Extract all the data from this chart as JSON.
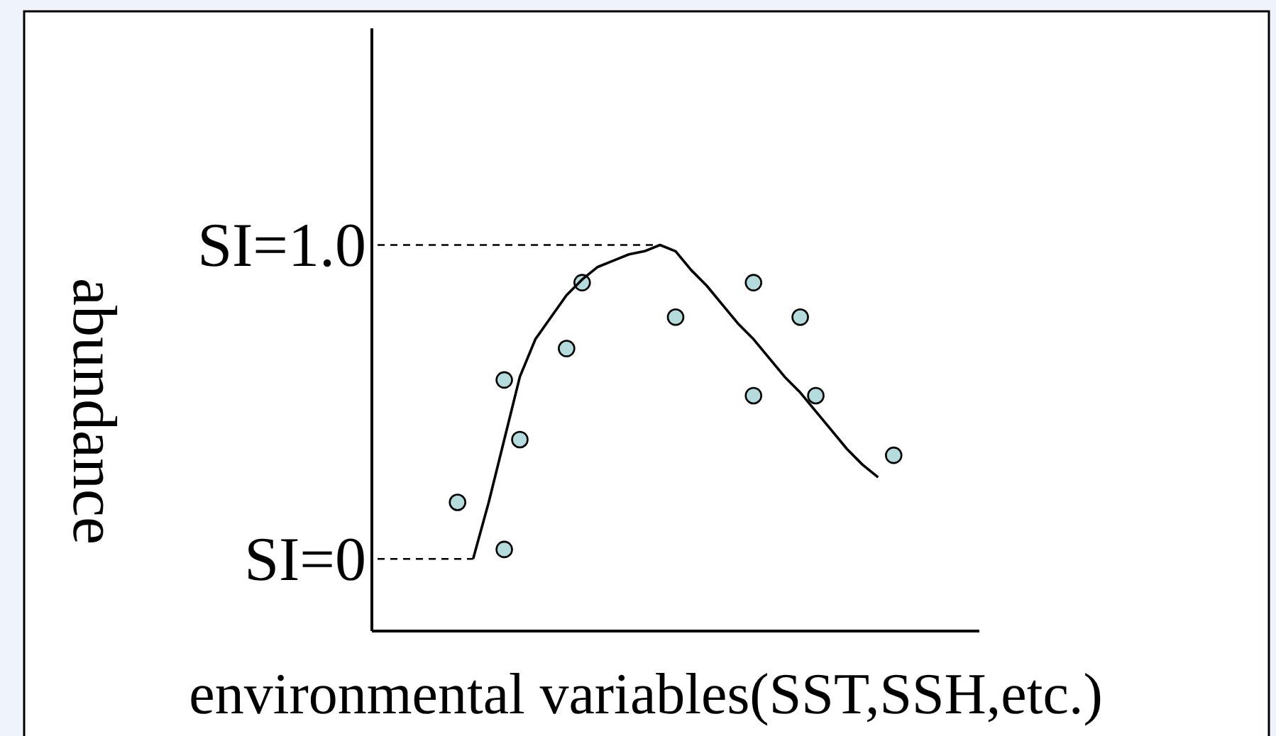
{
  "chart_data": {
    "type": "scatter",
    "xlabel": "environmental variables(SST,SSH,etc.)",
    "ylabel": "abundance",
    "categories": [
      null,
      null,
      null,
      null,
      null,
      null,
      null,
      null,
      null,
      null,
      null,
      null,
      null,
      null,
      null,
      null,
      null,
      null,
      null,
      null,
      null,
      null,
      null,
      null,
      null,
      null,
      null,
      null,
      null,
      null,
      null,
      null,
      null,
      null,
      null,
      null,
      null,
      null,
      null
    ],
    "ylim": [
      -0.23,
      1.69
    ],
    "yticks": [
      {
        "value": 0,
        "label": "SI=0"
      },
      {
        "value": 1,
        "label": "SI=1.0"
      }
    ],
    "tick_labels": "y",
    "marker": "circle",
    "ref_lines": [
      {
        "axis": "y",
        "value": 0,
        "label": null,
        "line_style": "dashed",
        "color": "#000000"
      },
      {
        "axis": "y",
        "value": 1,
        "label": null,
        "line_style": "dashed",
        "color": "#000000"
      }
    ],
    "series": [
      {
        "color": "#b4dcdc",
        "values": [
          null,
          null,
          null,
          null,
          null,
          0.18,
          null,
          null,
          0.57,
          0.38,
          null,
          null,
          0.67,
          0.88,
          null,
          null,
          null,
          null,
          null,
          0.77,
          null,
          null,
          null,
          null,
          0.88,
          null,
          null,
          0.77,
          0.52,
          null,
          null,
          null,
          null,
          0.33,
          null,
          null,
          null,
          null,
          null
        ]
      },
      {
        "color": "#b4dcdc",
        "values": [
          null,
          null,
          null,
          null,
          null,
          null,
          null,
          null,
          0.03,
          null,
          null,
          null,
          null,
          null,
          null,
          null,
          null,
          null,
          null,
          null,
          null,
          null,
          null,
          null,
          0.52,
          null,
          null,
          null,
          null,
          null,
          null,
          null,
          null,
          null,
          null,
          null,
          null,
          null,
          null
        ]
      },
      {
        "type": "line",
        "color": "#000000",
        "marker": "none",
        "values": [
          null,
          null,
          null,
          null,
          null,
          null,
          0,
          0.18,
          0.38,
          0.58,
          0.7,
          0.77,
          0.84,
          0.89,
          0.93,
          0.95,
          0.97,
          0.98,
          1.0,
          0.98,
          0.92,
          0.87,
          0.81,
          0.75,
          0.7,
          0.64,
          0.58,
          0.53,
          0.47,
          0.41,
          0.35,
          0.3,
          0.26,
          null,
          null,
          null,
          null,
          null,
          null
        ]
      }
    ]
  }
}
